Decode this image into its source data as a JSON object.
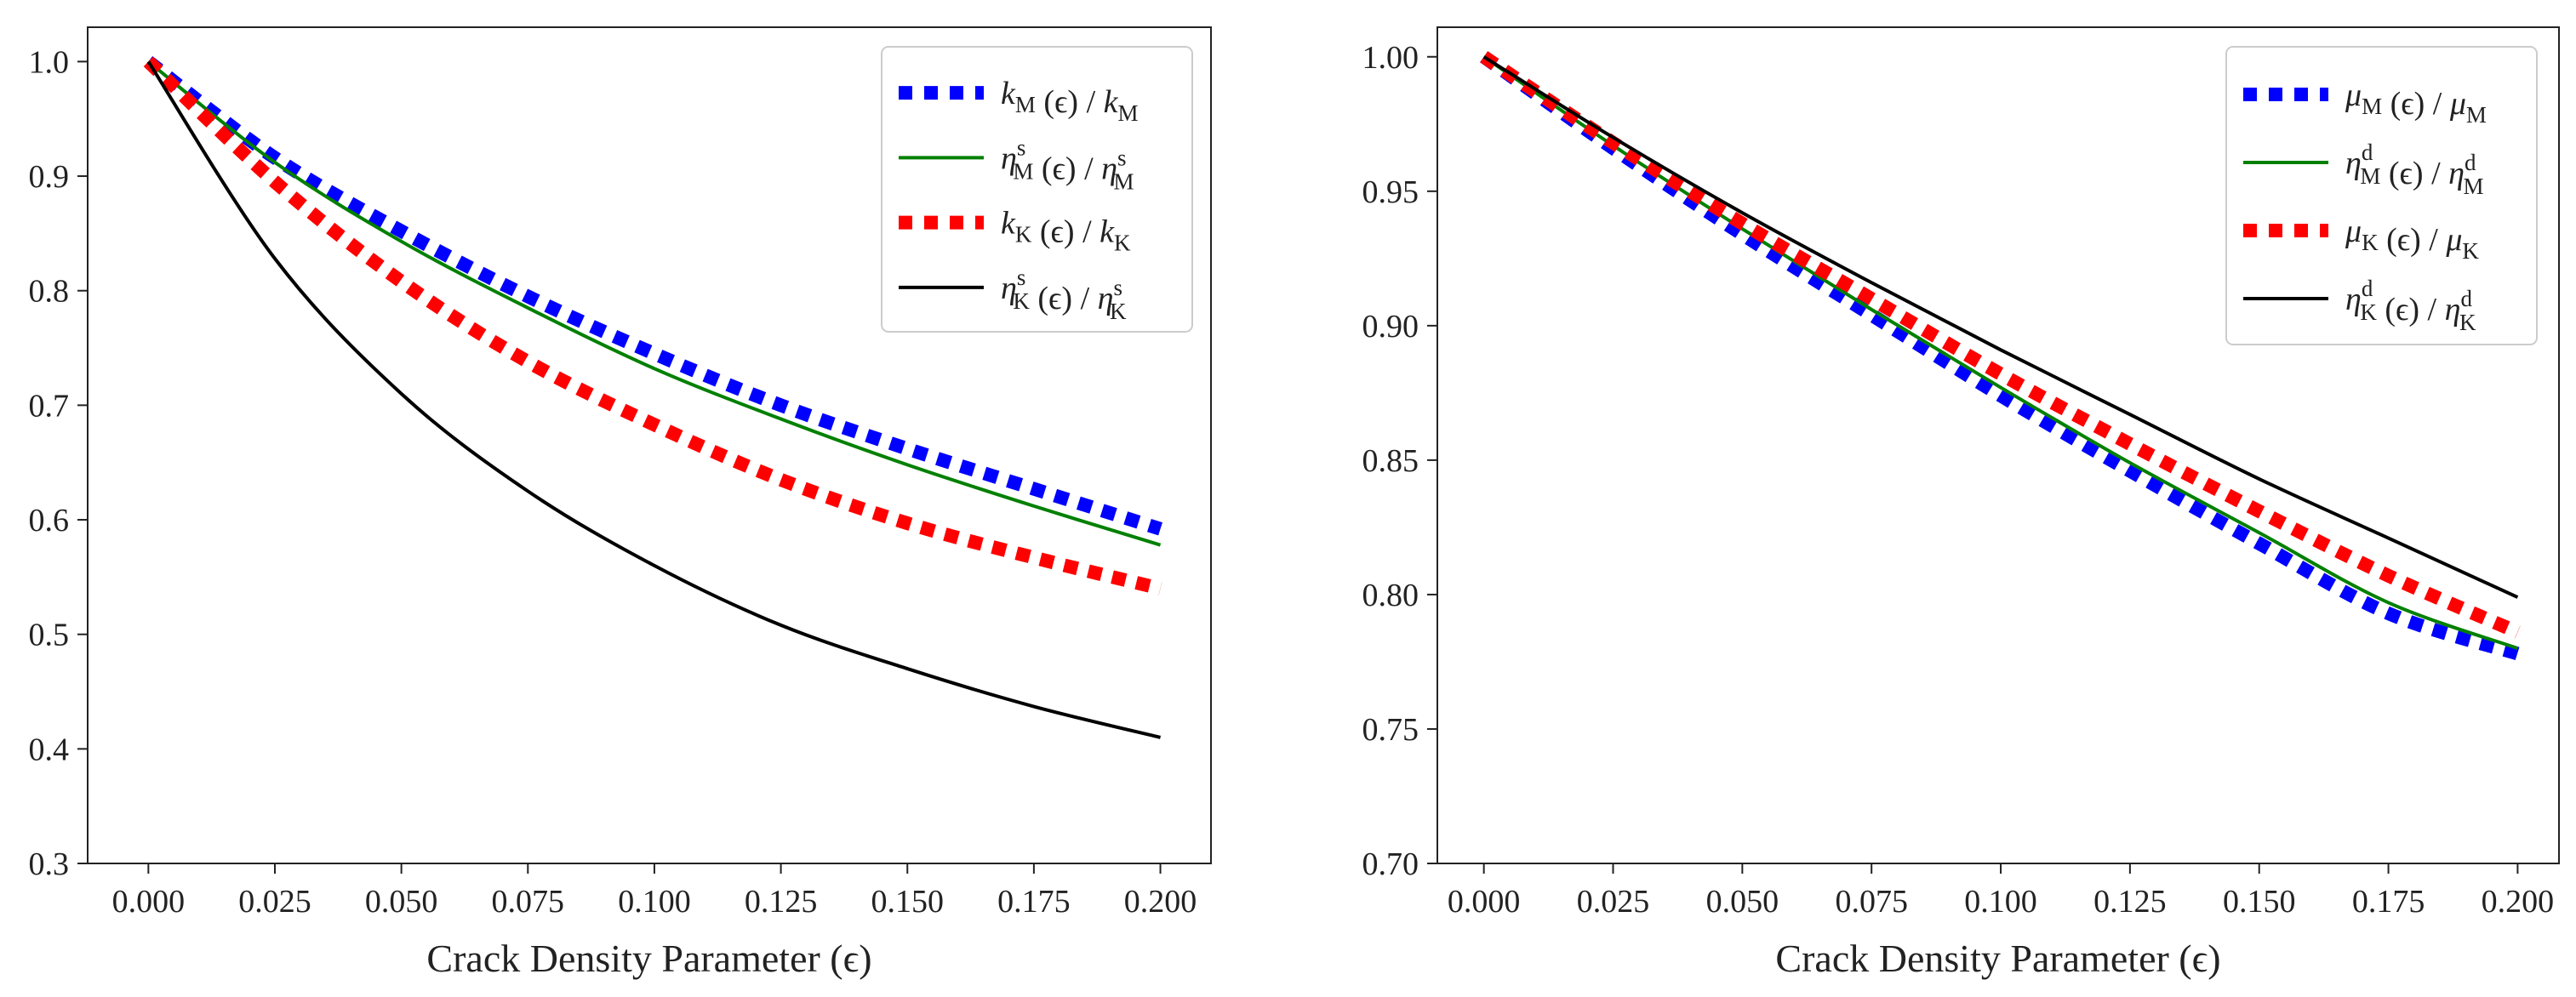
{
  "chart_data": [
    {
      "type": "line",
      "xlabel": "Crack Density Parameter (ϵ)",
      "ylabel": "",
      "xlim": [
        -0.012,
        0.21
      ],
      "ylim": [
        0.3,
        1.03
      ],
      "x_ticks": [
        0.0,
        0.025,
        0.05,
        0.075,
        0.1,
        0.125,
        0.15,
        0.175,
        0.2
      ],
      "x_tick_labels": [
        "0.000",
        "0.025",
        "0.050",
        "0.075",
        "0.100",
        "0.125",
        "0.150",
        "0.175",
        "0.200"
      ],
      "y_ticks": [
        0.3,
        0.4,
        0.5,
        0.6,
        0.7,
        0.8,
        0.9,
        1.0
      ],
      "y_tick_labels": [
        "0.3",
        "0.4",
        "0.5",
        "0.6",
        "0.7",
        "0.8",
        "0.9",
        "1.0"
      ],
      "legend_position": "top-right",
      "x": [
        0.0,
        0.025,
        0.05,
        0.075,
        0.1,
        0.125,
        0.15,
        0.175,
        0.2
      ],
      "series": [
        {
          "name": "k_M (ϵ) / k_M",
          "legend": {
            "main": "k",
            "sub": "M",
            "mid": " (ϵ) / ",
            "main2": "k",
            "sub2": "M"
          },
          "color": "#0000ff",
          "style": "dotted",
          "values": [
            1.0,
            0.916,
            0.852,
            0.795,
            0.745,
            0.7,
            0.662,
            0.627,
            0.592
          ]
        },
        {
          "name": "η^s_M (ϵ) / η^s_M",
          "legend": {
            "main": "η",
            "sup": "s",
            "sub": "M",
            "mid": " (ϵ) / ",
            "main2": "η",
            "sup2": "s",
            "sub2": "M"
          },
          "color": "#008000",
          "style": "solid",
          "values": [
            1.0,
            0.912,
            0.843,
            0.785,
            0.732,
            0.688,
            0.648,
            0.612,
            0.578
          ]
        },
        {
          "name": "k_K (ϵ) / k_K",
          "legend": {
            "main": "k",
            "sub": "K",
            "mid": " (ϵ) / ",
            "main2": "k",
            "sub2": "K"
          },
          "color": "#ff0000",
          "style": "dotted",
          "values": [
            1.0,
            0.895,
            0.808,
            0.738,
            0.683,
            0.635,
            0.597,
            0.567,
            0.54
          ]
        },
        {
          "name": "η^s_K (ϵ) / η^s_K",
          "legend": {
            "main": "η",
            "sup": "s",
            "sub": "K",
            "mid": " (ϵ) / ",
            "main2": "η",
            "sup2": "s",
            "sub2": "K"
          },
          "color": "#000000",
          "style": "solid",
          "values": [
            1.0,
            0.828,
            0.71,
            0.625,
            0.56,
            0.508,
            0.47,
            0.437,
            0.41
          ]
        }
      ]
    },
    {
      "type": "line",
      "xlabel": "Crack Density Parameter (ϵ)",
      "ylabel": "",
      "xlim": [
        -0.009,
        0.208
      ],
      "ylim": [
        0.7,
        1.011
      ],
      "x_ticks": [
        0.0,
        0.025,
        0.05,
        0.075,
        0.1,
        0.125,
        0.15,
        0.175,
        0.2
      ],
      "x_tick_labels": [
        "0.000",
        "0.025",
        "0.050",
        "0.075",
        "0.100",
        "0.125",
        "0.150",
        "0.175",
        "0.200"
      ],
      "y_ticks": [
        0.7,
        0.75,
        0.8,
        0.85,
        0.9,
        0.95,
        1.0
      ],
      "y_tick_labels": [
        "0.70",
        "0.75",
        "0.80",
        "0.85",
        "0.90",
        "0.95",
        "1.00"
      ],
      "legend_position": "top-right",
      "x": [
        0.0,
        0.025,
        0.05,
        0.075,
        0.1,
        0.125,
        0.15,
        0.175,
        0.2
      ],
      "series": [
        {
          "name": "μ_M (ϵ) / μ_M",
          "legend": {
            "main": "μ",
            "sub": "M",
            "mid": " (ϵ) / ",
            "main2": "μ",
            "sub2": "M"
          },
          "color": "#0000ff",
          "style": "dotted",
          "values": [
            1.0,
            0.966,
            0.934,
            0.904,
            0.874,
            0.846,
            0.819,
            0.793,
            0.778
          ]
        },
        {
          "name": "η^d_M (ϵ) / η^d_M",
          "legend": {
            "main": "η",
            "sup": "d",
            "sub": "M",
            "mid": " (ϵ) / ",
            "main2": "η",
            "sup2": "d",
            "sub2": "M"
          },
          "color": "#008000",
          "style": "solid",
          "values": [
            1.0,
            0.967,
            0.936,
            0.906,
            0.877,
            0.849,
            0.823,
            0.797,
            0.78
          ]
        },
        {
          "name": "μ_K (ϵ) / μ_K",
          "legend": {
            "main": "μ",
            "sub": "K",
            "mid": " (ϵ) / ",
            "main2": "μ",
            "sub2": "K"
          },
          "color": "#ff0000",
          "style": "dotted",
          "values": [
            1.0,
            0.968,
            0.938,
            0.91,
            0.882,
            0.856,
            0.831,
            0.807,
            0.786
          ]
        },
        {
          "name": "η^d_K (ϵ) / η^d_K",
          "legend": {
            "main": "η",
            "sup": "d",
            "sub": "K",
            "mid": " (ϵ) / ",
            "main2": "η",
            "sup2": "d",
            "sub2": "K"
          },
          "color": "#000000",
          "style": "solid",
          "values": [
            1.0,
            0.97,
            0.942,
            0.916,
            0.891,
            0.867,
            0.843,
            0.821,
            0.799
          ]
        }
      ]
    }
  ]
}
